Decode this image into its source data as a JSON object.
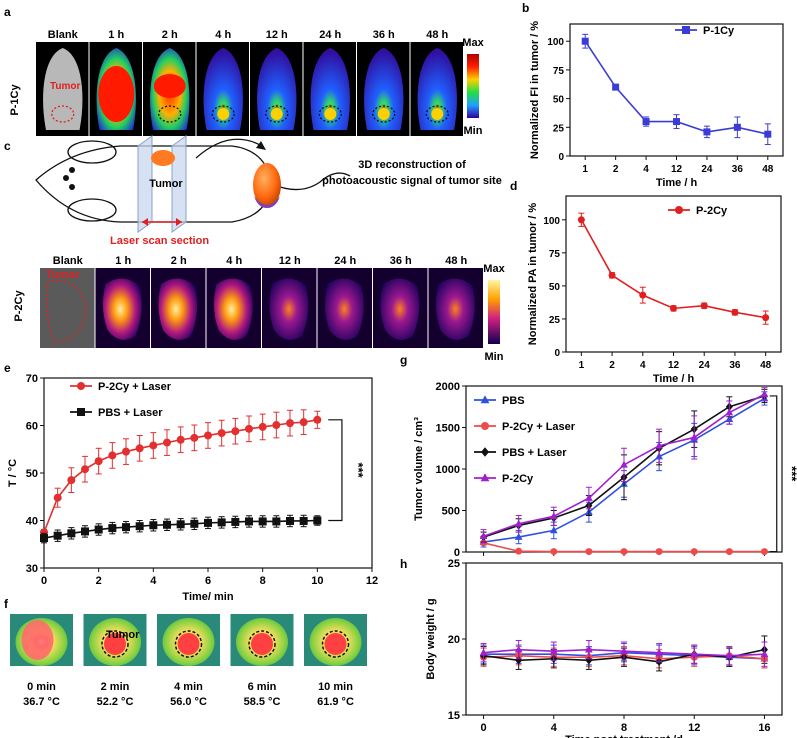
{
  "panel_letters": {
    "a": "a",
    "b": "b",
    "c": "c",
    "d": "d",
    "e": "e",
    "f": "f",
    "g": "g",
    "h": "h"
  },
  "panel_a": {
    "row_label": "P-1Cy",
    "tumor_label": "Tumor",
    "frames": [
      "Blank",
      "1 h",
      "2 h",
      "4 h",
      "12 h",
      "24 h",
      "36 h",
      "48 h"
    ],
    "colorbar_max": "Max",
    "colorbar_min": "Min"
  },
  "panel_c": {
    "tumor_label": "Tumor",
    "scan_label": "Laser scan section",
    "recon_line1": "3D reconstruction of",
    "recon_line2": "photoacoustic signal of tumor site",
    "row_label": "P-2Cy",
    "frames": [
      "Blank",
      "1 h",
      "2 h",
      "4 h",
      "12 h",
      "24 h",
      "36 h",
      "48 h"
    ],
    "blank_tumor_label": "Tumor",
    "colorbar_max": "Max",
    "colorbar_min": "Min"
  },
  "panel_f": {
    "tumor_label": "Tumor",
    "times": [
      "0 min",
      "2 min",
      "4 min",
      "6 min",
      "10 min"
    ],
    "temps": [
      "36.7 °C",
      "52.2 °C",
      "56.0 °C",
      "58.5 °C",
      "61.9 °C"
    ]
  },
  "chart_data": [
    {
      "id": "b",
      "type": "line",
      "categories": [
        "1",
        "2",
        "4",
        "12",
        "24",
        "36",
        "48"
      ],
      "series": [
        {
          "name": "P-1Cy",
          "color": "#3b3bd6",
          "marker": "square",
          "values": [
            100,
            60,
            30,
            30,
            21,
            25,
            19
          ],
          "errors": [
            6,
            2,
            4,
            6,
            5,
            9,
            9
          ]
        }
      ],
      "xlabel": "Time / h",
      "ylabel": "Normalized FI in tumor / %",
      "ylim": [
        0,
        115
      ],
      "yticks": [
        0,
        25,
        50,
        75,
        100
      ]
    },
    {
      "id": "d",
      "type": "line",
      "categories": [
        "1",
        "2",
        "4",
        "12",
        "24",
        "36",
        "48"
      ],
      "series": [
        {
          "name": "P-2Cy",
          "color": "#e02020",
          "marker": "circle",
          "values": [
            100,
            58,
            43,
            33,
            35,
            30,
            26
          ],
          "errors": [
            5,
            2,
            6,
            2,
            2,
            2,
            5
          ]
        }
      ],
      "xlabel": "Time / h",
      "ylabel": "Normalized  PA in tumor / %",
      "ylim": [
        0,
        118
      ],
      "yticks": [
        0,
        25,
        50,
        75,
        100
      ]
    },
    {
      "id": "e",
      "type": "line",
      "xlabel": "Time/ min",
      "ylabel": "T / °C",
      "xlim": [
        0,
        12
      ],
      "xticks": [
        0,
        2,
        4,
        6,
        8,
        10,
        12
      ],
      "ylim": [
        30,
        70
      ],
      "yticks": [
        30,
        40,
        50,
        60,
        70
      ],
      "significance": "***",
      "series": [
        {
          "name": "P-2Cy + Laser",
          "color": "#e23030",
          "marker": "circle",
          "x": [
            0,
            0.5,
            1,
            1.5,
            2,
            2.5,
            3,
            3.5,
            4,
            4.5,
            5,
            5.5,
            6,
            6.5,
            7,
            7.5,
            8,
            8.5,
            9,
            9.5,
            10
          ],
          "values": [
            37.5,
            44.8,
            48.5,
            50.8,
            52.5,
            53.7,
            54.5,
            55.2,
            55.8,
            56.4,
            57,
            57.4,
            57.9,
            58.4,
            58.8,
            59.3,
            59.7,
            60.1,
            60.5,
            60.7,
            61.2
          ],
          "errors": [
            0.6,
            2,
            2.6,
            2.7,
            2.7,
            2.7,
            2.7,
            2.7,
            2.7,
            2.7,
            2.7,
            2.7,
            2.7,
            2.7,
            2.7,
            2.7,
            2.7,
            2.7,
            2.7,
            2.6,
            1.8
          ]
        },
        {
          "name": "PBS + Laser",
          "color": "#111111",
          "marker": "square",
          "x": [
            0,
            0.5,
            1,
            1.5,
            2,
            2.5,
            3,
            3.5,
            4,
            4.5,
            5,
            5.5,
            6,
            6.5,
            7,
            7.5,
            8,
            8.5,
            9,
            9.5,
            10
          ],
          "values": [
            36.3,
            36.8,
            37.3,
            37.7,
            38.1,
            38.4,
            38.6,
            38.8,
            39,
            39.1,
            39.2,
            39.3,
            39.5,
            39.6,
            39.7,
            39.8,
            39.8,
            39.8,
            39.9,
            39.9,
            40
          ],
          "errors": [
            1,
            1.2,
            1.2,
            1.2,
            1.2,
            1.2,
            1.2,
            1.2,
            1.2,
            1.2,
            1.2,
            1.2,
            1.2,
            1.2,
            1.2,
            1.2,
            1.2,
            1.2,
            1.2,
            1.2,
            1
          ]
        }
      ]
    },
    {
      "id": "g",
      "type": "line",
      "xlabel": "",
      "ylabel": "Tumor volume / cm³",
      "xlim": [
        -1,
        17
      ],
      "xticks": [
        0,
        4,
        8,
        12,
        16
      ],
      "ylim": [
        0,
        2000
      ],
      "yticks": [
        0,
        500,
        1000,
        1500,
        2000
      ],
      "significance": "***",
      "series": [
        {
          "name": "PBS",
          "color": "#3050e0",
          "marker": "triangle",
          "x": [
            0,
            2,
            4,
            6,
            8,
            10,
            12,
            14,
            16
          ],
          "values": [
            120,
            180,
            260,
            480,
            820,
            1150,
            1350,
            1600,
            1850
          ],
          "errors": [
            60,
            80,
            100,
            120,
            160,
            170,
            200,
            60,
            80
          ]
        },
        {
          "name": "P-2Cy + Laser",
          "color": "#ee4a4a",
          "marker": "circle",
          "x": [
            0,
            2,
            4,
            6,
            8,
            10,
            12,
            14,
            16
          ],
          "values": [
            110,
            10,
            5,
            5,
            5,
            5,
            5,
            5,
            5
          ],
          "errors": [
            10,
            5,
            3,
            3,
            3,
            3,
            3,
            3,
            3
          ]
        },
        {
          "name": "PBS + Laser",
          "color": "#111111",
          "marker": "diamond",
          "x": [
            0,
            2,
            4,
            6,
            8,
            10,
            12,
            14,
            16
          ],
          "values": [
            180,
            320,
            410,
            560,
            900,
            1250,
            1480,
            1750,
            1880
          ],
          "errors": [
            60,
            80,
            90,
            120,
            270,
            200,
            220,
            120,
            80
          ]
        },
        {
          "name": "P-2Cy",
          "color": "#a020d0",
          "marker": "triangle",
          "x": [
            0,
            2,
            4,
            6,
            8,
            10,
            12,
            14,
            16
          ],
          "values": [
            190,
            340,
            430,
            650,
            1050,
            1280,
            1380,
            1680,
            1900
          ],
          "errors": [
            80,
            100,
            110,
            130,
            200,
            200,
            260,
            140,
            80
          ]
        }
      ]
    },
    {
      "id": "h",
      "type": "line",
      "xlabel": "Time post treatment /d",
      "ylabel": "Body weight / g",
      "xlim": [
        -1,
        17
      ],
      "xticks": [
        0,
        4,
        8,
        12,
        16
      ],
      "ylim": [
        15,
        25
      ],
      "yticks": [
        15,
        20,
        25
      ],
      "series": [
        {
          "name": "PBS",
          "color": "#3050e0",
          "marker": "triangle",
          "x": [
            0,
            2,
            4,
            6,
            8,
            10,
            12,
            14,
            16
          ],
          "values": [
            19.0,
            19.0,
            19.0,
            18.9,
            19.1,
            19.0,
            18.9,
            18.8,
            18.7
          ],
          "errors": [
            0.6,
            0.6,
            0.6,
            0.6,
            0.6,
            0.6,
            0.6,
            0.6,
            0.6
          ]
        },
        {
          "name": "P-2Cy + Laser",
          "color": "#ee4a4a",
          "marker": "circle",
          "x": [
            0,
            2,
            4,
            6,
            8,
            10,
            12,
            14,
            16
          ],
          "values": [
            18.8,
            18.9,
            18.8,
            18.8,
            18.9,
            18.7,
            18.8,
            18.9,
            18.7
          ],
          "errors": [
            0.6,
            0.6,
            0.6,
            0.6,
            0.6,
            0.6,
            0.6,
            0.6,
            0.6
          ]
        },
        {
          "name": "PBS + Laser",
          "color": "#111111",
          "marker": "diamond",
          "x": [
            0,
            2,
            4,
            6,
            8,
            10,
            12,
            14,
            16
          ],
          "values": [
            18.9,
            18.6,
            18.7,
            18.6,
            18.8,
            18.5,
            19.0,
            18.8,
            19.3
          ],
          "errors": [
            0.6,
            0.6,
            0.6,
            0.6,
            0.6,
            0.6,
            0.6,
            0.6,
            0.9
          ]
        },
        {
          "name": "P-2Cy",
          "color": "#a020d0",
          "marker": "triangle",
          "x": [
            0,
            2,
            4,
            6,
            8,
            10,
            12,
            14,
            16
          ],
          "values": [
            19.1,
            19.3,
            19.2,
            19.3,
            19.2,
            19.1,
            19.0,
            18.9,
            19.0
          ],
          "errors": [
            0.6,
            0.6,
            0.6,
            0.6,
            0.6,
            0.6,
            0.6,
            0.6,
            0.8
          ]
        }
      ]
    }
  ]
}
